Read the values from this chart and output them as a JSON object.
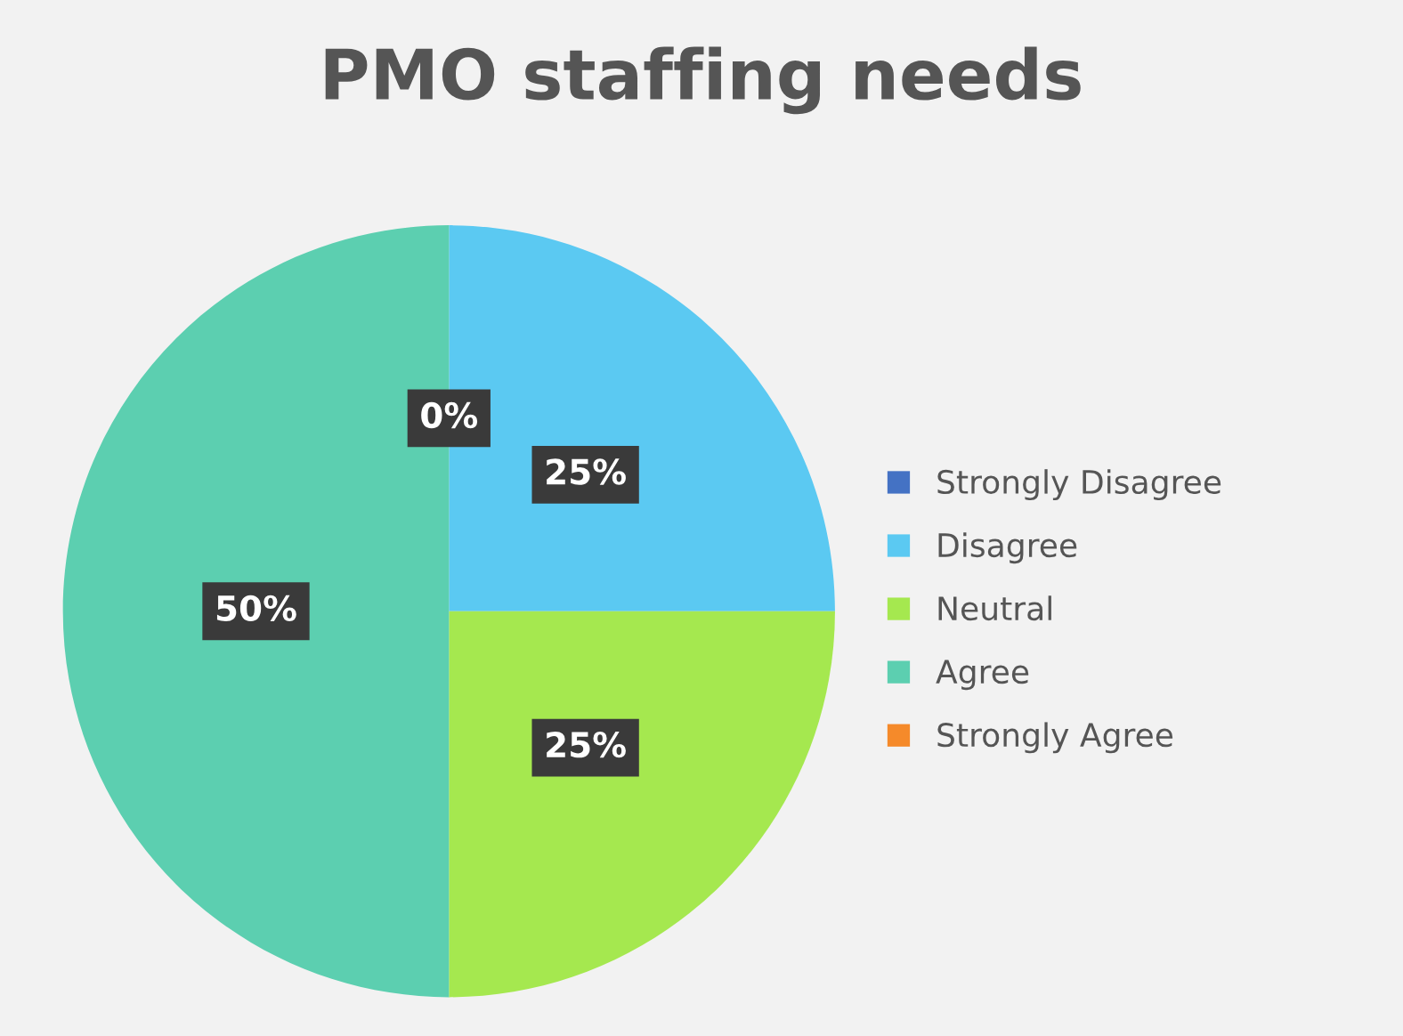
{
  "chart_data": {
    "type": "pie",
    "title": "PMO staffing needs",
    "categories": [
      "Strongly Disagree",
      "Disagree",
      "Neutral",
      "Agree",
      "Strongly Agree"
    ],
    "values": [
      0,
      25,
      25,
      50,
      0
    ],
    "colors": [
      "#4472c4",
      "#5bc9f2",
      "#a5e84f",
      "#5ccfb0",
      "#f58a2a"
    ],
    "value_labels": [
      "0%",
      "25%",
      "25%",
      "50%",
      null
    ],
    "legend": "right"
  }
}
